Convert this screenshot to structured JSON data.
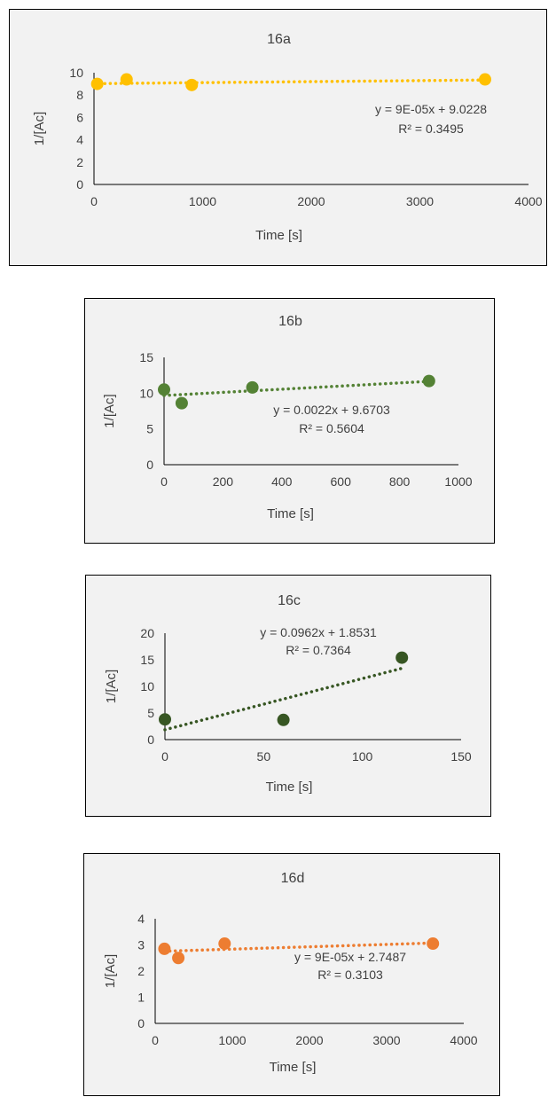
{
  "chart_data": [
    {
      "type": "scatter",
      "title": "16a",
      "xlabel": "Time [s]",
      "ylabel": "1/[Ac]",
      "xlim": [
        0,
        4000
      ],
      "ylim": [
        0,
        10
      ],
      "xticks": [
        0,
        1000,
        2000,
        3000,
        4000
      ],
      "yticks": [
        0,
        2,
        4,
        6,
        8,
        10
      ],
      "color": "#ffc000",
      "series": [
        {
          "x": [
            30,
            300,
            900,
            3600
          ],
          "y": [
            9.0,
            9.4,
            8.9,
            9.4
          ]
        }
      ],
      "trendline": {
        "slope": 9e-05,
        "intercept": 9.0228,
        "x_range": [
          0,
          3600
        ],
        "style": "dotted"
      },
      "equation": "y = 9E-05x + 9.0228",
      "r_squared": "R² = 0.3495"
    },
    {
      "type": "scatter",
      "title": "16b",
      "xlabel": "Time [s]",
      "ylabel": "1/[Ac]",
      "xlim": [
        0,
        1000
      ],
      "ylim": [
        0,
        15
      ],
      "xticks": [
        0,
        200,
        400,
        600,
        800,
        1000
      ],
      "yticks": [
        0,
        5,
        10,
        15
      ],
      "color": "#548235",
      "series": [
        {
          "x": [
            0,
            60,
            300,
            900
          ],
          "y": [
            10.5,
            8.6,
            10.8,
            11.7
          ]
        }
      ],
      "trendline": {
        "slope": 0.0022,
        "intercept": 9.6703,
        "x_range": [
          0,
          900
        ],
        "style": "dotted"
      },
      "equation": "y = 0.0022x + 9.6703",
      "r_squared": "R² = 0.5604"
    },
    {
      "type": "scatter",
      "title": "16c",
      "xlabel": "Time [s]",
      "ylabel": "1/[Ac]",
      "xlim": [
        0,
        150
      ],
      "ylim": [
        0,
        20
      ],
      "xticks": [
        0,
        50,
        100,
        150
      ],
      "yticks": [
        0,
        5,
        10,
        15,
        20
      ],
      "color": "#375623",
      "series": [
        {
          "x": [
            0,
            60,
            120
          ],
          "y": [
            3.8,
            3.7,
            15.4
          ]
        }
      ],
      "trendline": {
        "slope": 0.0962,
        "intercept": 1.8531,
        "x_range": [
          0,
          120
        ],
        "style": "dotted"
      },
      "equation": "y = 0.0962x + 1.8531",
      "r_squared": "R² = 0.7364"
    },
    {
      "type": "scatter",
      "title": "16d",
      "xlabel": "Time [s]",
      "ylabel": "1/[Ac]",
      "xlim": [
        0,
        4000
      ],
      "ylim": [
        0,
        4
      ],
      "xticks": [
        0,
        1000,
        2000,
        3000,
        4000
      ],
      "yticks": [
        0,
        1,
        2,
        3,
        4
      ],
      "color": "#ed7d31",
      "series": [
        {
          "x": [
            120,
            300,
            900,
            3600
          ],
          "y": [
            2.85,
            2.5,
            3.05,
            3.05
          ]
        }
      ],
      "trendline": {
        "slope": 9e-05,
        "intercept": 2.7487,
        "x_range": [
          120,
          3600
        ],
        "style": "dotted"
      },
      "equation": "y = 9E-05x + 2.7487",
      "r_squared": "R² = 0.3103"
    }
  ]
}
